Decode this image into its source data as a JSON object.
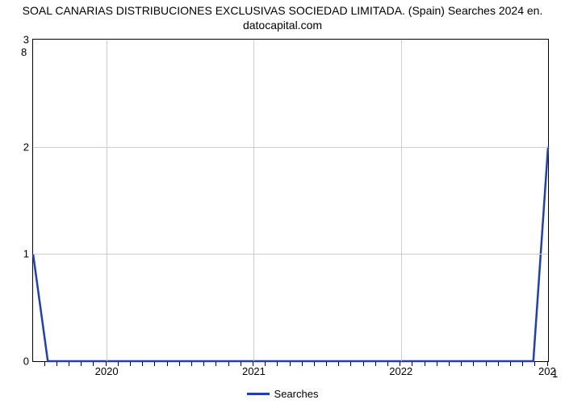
{
  "chart": {
    "type": "line",
    "title": "SOAL CANARIAS DISTRIBUCIONES EXCLUSIVAS SOCIEDAD LIMITADA. (Spain) Searches 2024 en.\ndatocapital.com",
    "title_fontsize": 14,
    "title_color": "#000000",
    "background_color": "#ffffff",
    "plot_border_color": "#000000",
    "plot_border_width": 1,
    "grid_color": "#cccccc",
    "grid_width": 1,
    "x_axis": {
      "min": 2019.5,
      "max": 2023.0,
      "major_ticks": [
        2020,
        2021,
        2022
      ],
      "major_tick_labels": [
        "2020",
        "2021",
        "2022"
      ],
      "minor_step": 0.083333,
      "label_fontsize": 13,
      "label_color": "#000000",
      "right_edge_label": "202"
    },
    "y_axis": {
      "min": 0,
      "max": 3,
      "major_ticks": [
        0,
        1,
        2,
        3
      ],
      "major_tick_labels": [
        "0",
        "1",
        "2",
        "3"
      ],
      "label_fontsize": 13,
      "label_color": "#000000",
      "secondary_top_label": "8",
      "secondary_bottom_label": "1"
    },
    "series": [
      {
        "name": "Searches",
        "color": "#1f3fb8",
        "line_width": 2.5,
        "x": [
          2019.5,
          2019.6,
          2022.9,
          2023.0
        ],
        "y": [
          1.0,
          0.0,
          0.0,
          2.0
        ]
      }
    ],
    "legend": {
      "position": "bottom-center",
      "items": [
        {
          "label": "Searches",
          "color": "#1f3fb8",
          "swatch_width": 28,
          "swatch_height": 3
        }
      ],
      "fontsize": 13
    }
  }
}
